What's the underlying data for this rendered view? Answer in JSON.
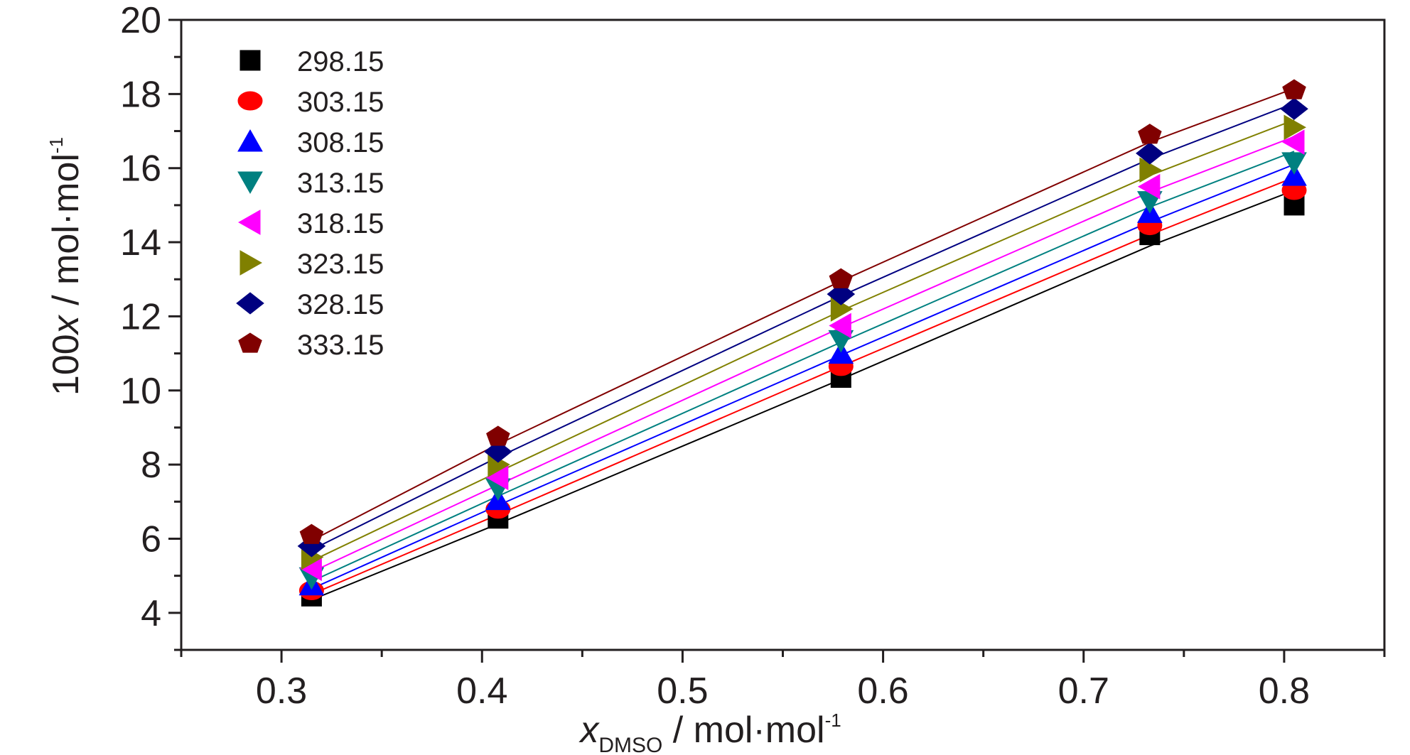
{
  "chart_data": {
    "type": "scatter",
    "title": "",
    "xlabel": {
      "prefix": "x",
      "subscript": "DMSO",
      "units": " / mol·mol",
      "superscript": "-1"
    },
    "ylabel": {
      "prefix": "100",
      "italic": "x",
      "units": " / mol·mol",
      "superscript": "-1"
    },
    "xlim": [
      0.25,
      0.85
    ],
    "ylim": [
      3,
      20
    ],
    "x_ticks": [
      "0.3",
      "0.4",
      "0.5",
      "0.6",
      "0.7",
      "0.8"
    ],
    "y_ticks": [
      "4",
      "6",
      "8",
      "10",
      "12",
      "14",
      "16",
      "18",
      "20"
    ],
    "grid": false,
    "legend_position": "top-left",
    "x": [
      0.315,
      0.408,
      0.579,
      0.733,
      0.805
    ],
    "series": [
      {
        "name": "298.15",
        "marker": "square",
        "color": "#000000",
        "values": [
          4.45,
          6.55,
          10.35,
          14.2,
          15.0
        ],
        "fit": [
          4.35,
          6.4,
          10.3,
          13.9,
          15.4
        ]
      },
      {
        "name": "303.15",
        "marker": "circle",
        "color": "#ff0000",
        "values": [
          4.6,
          6.8,
          10.65,
          14.45,
          15.4
        ],
        "fit": [
          4.5,
          6.65,
          10.65,
          14.2,
          15.75
        ]
      },
      {
        "name": "308.15",
        "marker": "triangle-up",
        "color": "#0000ff",
        "values": [
          4.75,
          7.05,
          11.0,
          14.8,
          15.8
        ],
        "fit": [
          4.65,
          6.9,
          10.95,
          14.55,
          16.1
        ]
      },
      {
        "name": "313.15",
        "marker": "triangle-down",
        "color": "#008080",
        "values": [
          4.95,
          7.35,
          11.35,
          15.1,
          16.15
        ],
        "fit": [
          4.85,
          7.15,
          11.3,
          14.95,
          16.45
        ]
      },
      {
        "name": "318.15",
        "marker": "triangle-left",
        "color": "#ff00ff",
        "values": [
          5.2,
          7.65,
          11.75,
          15.5,
          16.7
        ],
        "fit": [
          5.1,
          7.45,
          11.7,
          15.35,
          16.85
        ]
      },
      {
        "name": "323.15",
        "marker": "triangle-right",
        "color": "#808000",
        "values": [
          5.5,
          8.0,
          12.2,
          15.95,
          17.1
        ],
        "fit": [
          5.4,
          7.8,
          12.15,
          15.8,
          17.3
        ]
      },
      {
        "name": "328.15",
        "marker": "diamond",
        "color": "#000080",
        "values": [
          5.8,
          8.35,
          12.6,
          16.4,
          17.6
        ],
        "fit": [
          5.7,
          8.2,
          12.55,
          16.25,
          17.75
        ]
      },
      {
        "name": "333.15",
        "marker": "pentagon",
        "color": "#800000",
        "values": [
          6.1,
          8.75,
          13.0,
          16.9,
          18.1
        ],
        "fit": [
          5.95,
          8.55,
          12.95,
          16.7,
          18.15
        ]
      }
    ]
  }
}
